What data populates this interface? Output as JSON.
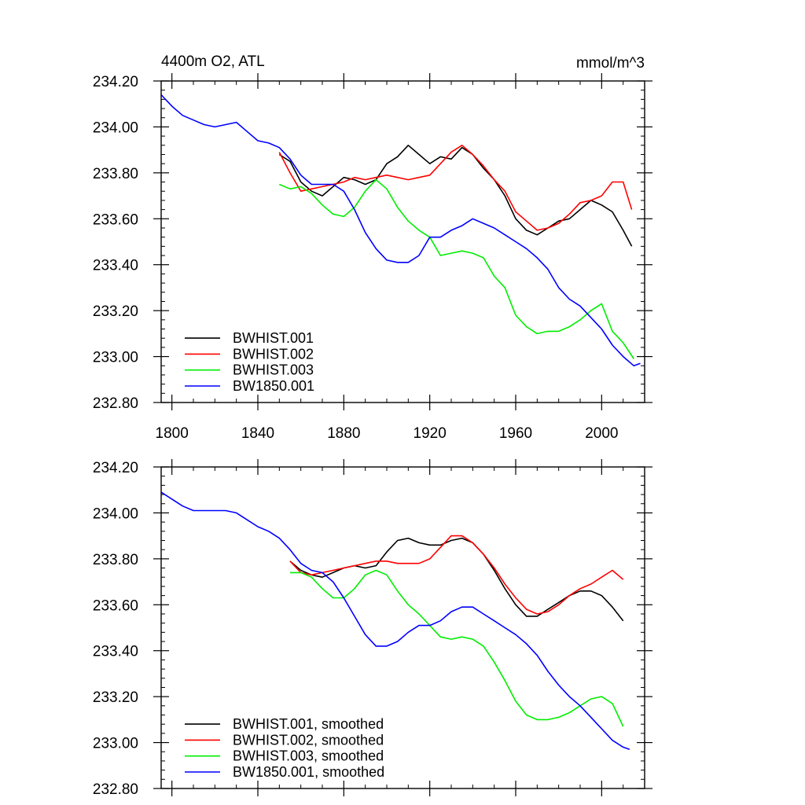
{
  "chart_data": [
    {
      "type": "line",
      "title": "4400m O2, ATL",
      "units": "mmol/m^3",
      "xlim": [
        1795,
        2020
      ],
      "ylim": [
        232.8,
        234.2
      ],
      "xticks": [
        1800,
        1840,
        1880,
        1920,
        1960,
        2000
      ],
      "xtick_labels": [
        "1800",
        "1840",
        "1880",
        "1920",
        "1960",
        "2000"
      ],
      "yticks": [
        232.8,
        233.0,
        233.2,
        233.4,
        233.6,
        233.8,
        234.0,
        234.2
      ],
      "ytick_labels": [
        "232.80",
        "233.00",
        "233.20",
        "233.40",
        "233.60",
        "233.80",
        "234.00",
        "234.20"
      ],
      "legend_position": "bottom-left",
      "series": [
        {
          "name": "BWHIST.001",
          "color": "#000000",
          "x": [
            1850,
            1855,
            1860,
            1865,
            1870,
            1875,
            1880,
            1885,
            1890,
            1895,
            1900,
            1905,
            1910,
            1915,
            1920,
            1925,
            1930,
            1935,
            1940,
            1945,
            1950,
            1955,
            1960,
            1965,
            1970,
            1975,
            1980,
            1985,
            1990,
            1995,
            2000,
            2005,
            2010,
            2014
          ],
          "y": [
            233.88,
            233.85,
            233.76,
            233.72,
            233.7,
            233.74,
            233.78,
            233.77,
            233.75,
            233.77,
            233.84,
            233.87,
            233.92,
            233.88,
            233.84,
            233.87,
            233.86,
            233.91,
            233.88,
            233.82,
            233.77,
            233.7,
            233.6,
            233.55,
            233.53,
            233.56,
            233.59,
            233.6,
            233.64,
            233.68,
            233.66,
            233.63,
            233.55,
            233.48
          ]
        },
        {
          "name": "BWHIST.002",
          "color": "#ff0000",
          "x": [
            1850,
            1855,
            1860,
            1865,
            1870,
            1875,
            1880,
            1885,
            1890,
            1895,
            1900,
            1905,
            1910,
            1915,
            1920,
            1925,
            1930,
            1935,
            1940,
            1945,
            1950,
            1955,
            1960,
            1965,
            1970,
            1975,
            1980,
            1985,
            1990,
            1995,
            2000,
            2005,
            2010,
            2014
          ],
          "y": [
            233.89,
            233.8,
            233.72,
            233.73,
            233.74,
            233.75,
            233.76,
            233.78,
            233.77,
            233.78,
            233.79,
            233.78,
            233.77,
            233.78,
            233.79,
            233.84,
            233.89,
            233.92,
            233.88,
            233.83,
            233.77,
            233.72,
            233.63,
            233.59,
            233.55,
            233.56,
            233.58,
            233.62,
            233.67,
            233.68,
            233.7,
            233.76,
            233.76,
            233.64
          ]
        },
        {
          "name": "BWHIST.003",
          "color": "#00ee00",
          "x": [
            1850,
            1855,
            1860,
            1865,
            1870,
            1875,
            1880,
            1885,
            1890,
            1895,
            1900,
            1905,
            1910,
            1915,
            1920,
            1925,
            1930,
            1935,
            1940,
            1945,
            1950,
            1955,
            1960,
            1965,
            1970,
            1975,
            1980,
            1985,
            1990,
            1995,
            2000,
            2005,
            2010,
            2015
          ],
          "y": [
            233.75,
            233.73,
            233.74,
            233.71,
            233.66,
            233.62,
            233.61,
            233.65,
            233.72,
            233.77,
            233.73,
            233.65,
            233.59,
            233.55,
            233.52,
            233.44,
            233.45,
            233.46,
            233.45,
            233.43,
            233.35,
            233.3,
            233.18,
            233.13,
            233.1,
            233.11,
            233.11,
            233.13,
            233.16,
            233.2,
            233.23,
            233.11,
            233.06,
            232.99
          ]
        },
        {
          "name": "BW1850.001",
          "color": "#0000ff",
          "x": [
            1795,
            1800,
            1805,
            1810,
            1815,
            1820,
            1825,
            1830,
            1835,
            1840,
            1845,
            1850,
            1855,
            1860,
            1865,
            1870,
            1875,
            1880,
            1885,
            1890,
            1895,
            1900,
            1905,
            1910,
            1915,
            1920,
            1925,
            1930,
            1935,
            1940,
            1945,
            1950,
            1955,
            1960,
            1965,
            1970,
            1975,
            1980,
            1985,
            1990,
            1995,
            2000,
            2005,
            2010,
            2015,
            2018
          ],
          "y": [
            234.14,
            234.09,
            234.05,
            234.03,
            234.01,
            234.0,
            234.01,
            234.02,
            233.98,
            233.94,
            233.93,
            233.91,
            233.86,
            233.79,
            233.75,
            233.75,
            233.75,
            233.72,
            233.64,
            233.54,
            233.47,
            233.42,
            233.41,
            233.41,
            233.44,
            233.52,
            233.52,
            233.55,
            233.57,
            233.6,
            233.58,
            233.56,
            233.53,
            233.5,
            233.47,
            233.43,
            233.38,
            233.3,
            233.25,
            233.22,
            233.17,
            233.12,
            233.05,
            233.0,
            232.96,
            232.97
          ]
        }
      ]
    },
    {
      "type": "line",
      "xlim": [
        1795,
        2020
      ],
      "ylim": [
        232.8,
        234.2
      ],
      "xticks": [
        1800,
        1840,
        1880,
        1920,
        1960,
        2000
      ],
      "yticks": [
        232.8,
        233.0,
        233.2,
        233.4,
        233.6,
        233.8,
        234.0,
        234.2
      ],
      "ytick_labels": [
        "232.80",
        "233.00",
        "233.20",
        "233.40",
        "233.60",
        "233.80",
        "234.00",
        "234.20"
      ],
      "legend_position": "bottom-left",
      "series": [
        {
          "name": "BWHIST.001, smoothed",
          "color": "#000000",
          "x": [
            1855,
            1860,
            1865,
            1870,
            1875,
            1880,
            1885,
            1890,
            1895,
            1900,
            1905,
            1910,
            1915,
            1920,
            1925,
            1930,
            1935,
            1940,
            1945,
            1950,
            1955,
            1960,
            1965,
            1970,
            1975,
            1980,
            1985,
            1990,
            1995,
            2000,
            2005,
            2010
          ],
          "y": [
            233.79,
            233.75,
            233.73,
            233.72,
            233.74,
            233.76,
            233.77,
            233.76,
            233.77,
            233.83,
            233.88,
            233.89,
            233.87,
            233.86,
            233.86,
            233.88,
            233.89,
            233.87,
            233.82,
            233.75,
            233.67,
            233.6,
            233.55,
            233.55,
            233.58,
            233.61,
            233.64,
            233.66,
            233.66,
            233.64,
            233.59,
            233.53
          ]
        },
        {
          "name": "BWHIST.002, smoothed",
          "color": "#ff0000",
          "x": [
            1855,
            1860,
            1865,
            1870,
            1875,
            1880,
            1885,
            1890,
            1895,
            1900,
            1905,
            1910,
            1915,
            1920,
            1925,
            1930,
            1935,
            1940,
            1945,
            1950,
            1955,
            1960,
            1965,
            1970,
            1975,
            1980,
            1985,
            1990,
            1995,
            2000,
            2005,
            2010
          ],
          "y": [
            233.79,
            233.74,
            233.73,
            233.74,
            233.75,
            233.76,
            233.77,
            233.78,
            233.79,
            233.79,
            233.78,
            233.78,
            233.78,
            233.8,
            233.85,
            233.9,
            233.9,
            233.87,
            233.82,
            233.76,
            233.69,
            233.63,
            233.58,
            233.56,
            233.57,
            233.6,
            233.64,
            233.67,
            233.69,
            233.72,
            233.75,
            233.71
          ]
        },
        {
          "name": "BWHIST.003, smoothed",
          "color": "#00ee00",
          "x": [
            1855,
            1860,
            1865,
            1870,
            1875,
            1880,
            1885,
            1890,
            1895,
            1900,
            1905,
            1910,
            1915,
            1920,
            1925,
            1930,
            1935,
            1940,
            1945,
            1950,
            1955,
            1960,
            1965,
            1970,
            1975,
            1980,
            1985,
            1990,
            1995,
            2000,
            2005,
            2010
          ],
          "y": [
            233.74,
            233.74,
            233.72,
            233.67,
            233.63,
            233.63,
            233.67,
            233.73,
            233.75,
            233.73,
            233.66,
            233.6,
            233.56,
            233.51,
            233.46,
            233.45,
            233.46,
            233.45,
            233.42,
            233.35,
            233.27,
            233.18,
            233.12,
            233.1,
            233.1,
            233.11,
            233.13,
            233.16,
            233.19,
            233.2,
            233.17,
            233.07
          ]
        },
        {
          "name": "BW1850.001, smoothed",
          "color": "#0000ff",
          "x": [
            1795,
            1800,
            1805,
            1810,
            1815,
            1820,
            1825,
            1830,
            1835,
            1840,
            1845,
            1850,
            1855,
            1860,
            1865,
            1870,
            1875,
            1880,
            1885,
            1890,
            1895,
            1900,
            1905,
            1910,
            1915,
            1920,
            1925,
            1930,
            1935,
            1940,
            1945,
            1950,
            1955,
            1960,
            1965,
            1970,
            1975,
            1980,
            1985,
            1990,
            1995,
            2000,
            2005,
            2010,
            2013
          ],
          "y": [
            234.09,
            234.06,
            234.03,
            234.01,
            234.01,
            234.01,
            234.01,
            234.0,
            233.97,
            233.94,
            233.92,
            233.89,
            233.84,
            233.78,
            233.75,
            233.74,
            233.7,
            233.63,
            233.55,
            233.47,
            233.42,
            233.42,
            233.44,
            233.48,
            233.51,
            233.51,
            233.53,
            233.57,
            233.59,
            233.59,
            233.56,
            233.53,
            233.5,
            233.47,
            233.43,
            233.38,
            233.31,
            233.25,
            233.2,
            233.16,
            233.11,
            233.06,
            233.01,
            232.98,
            232.97
          ]
        }
      ]
    }
  ]
}
